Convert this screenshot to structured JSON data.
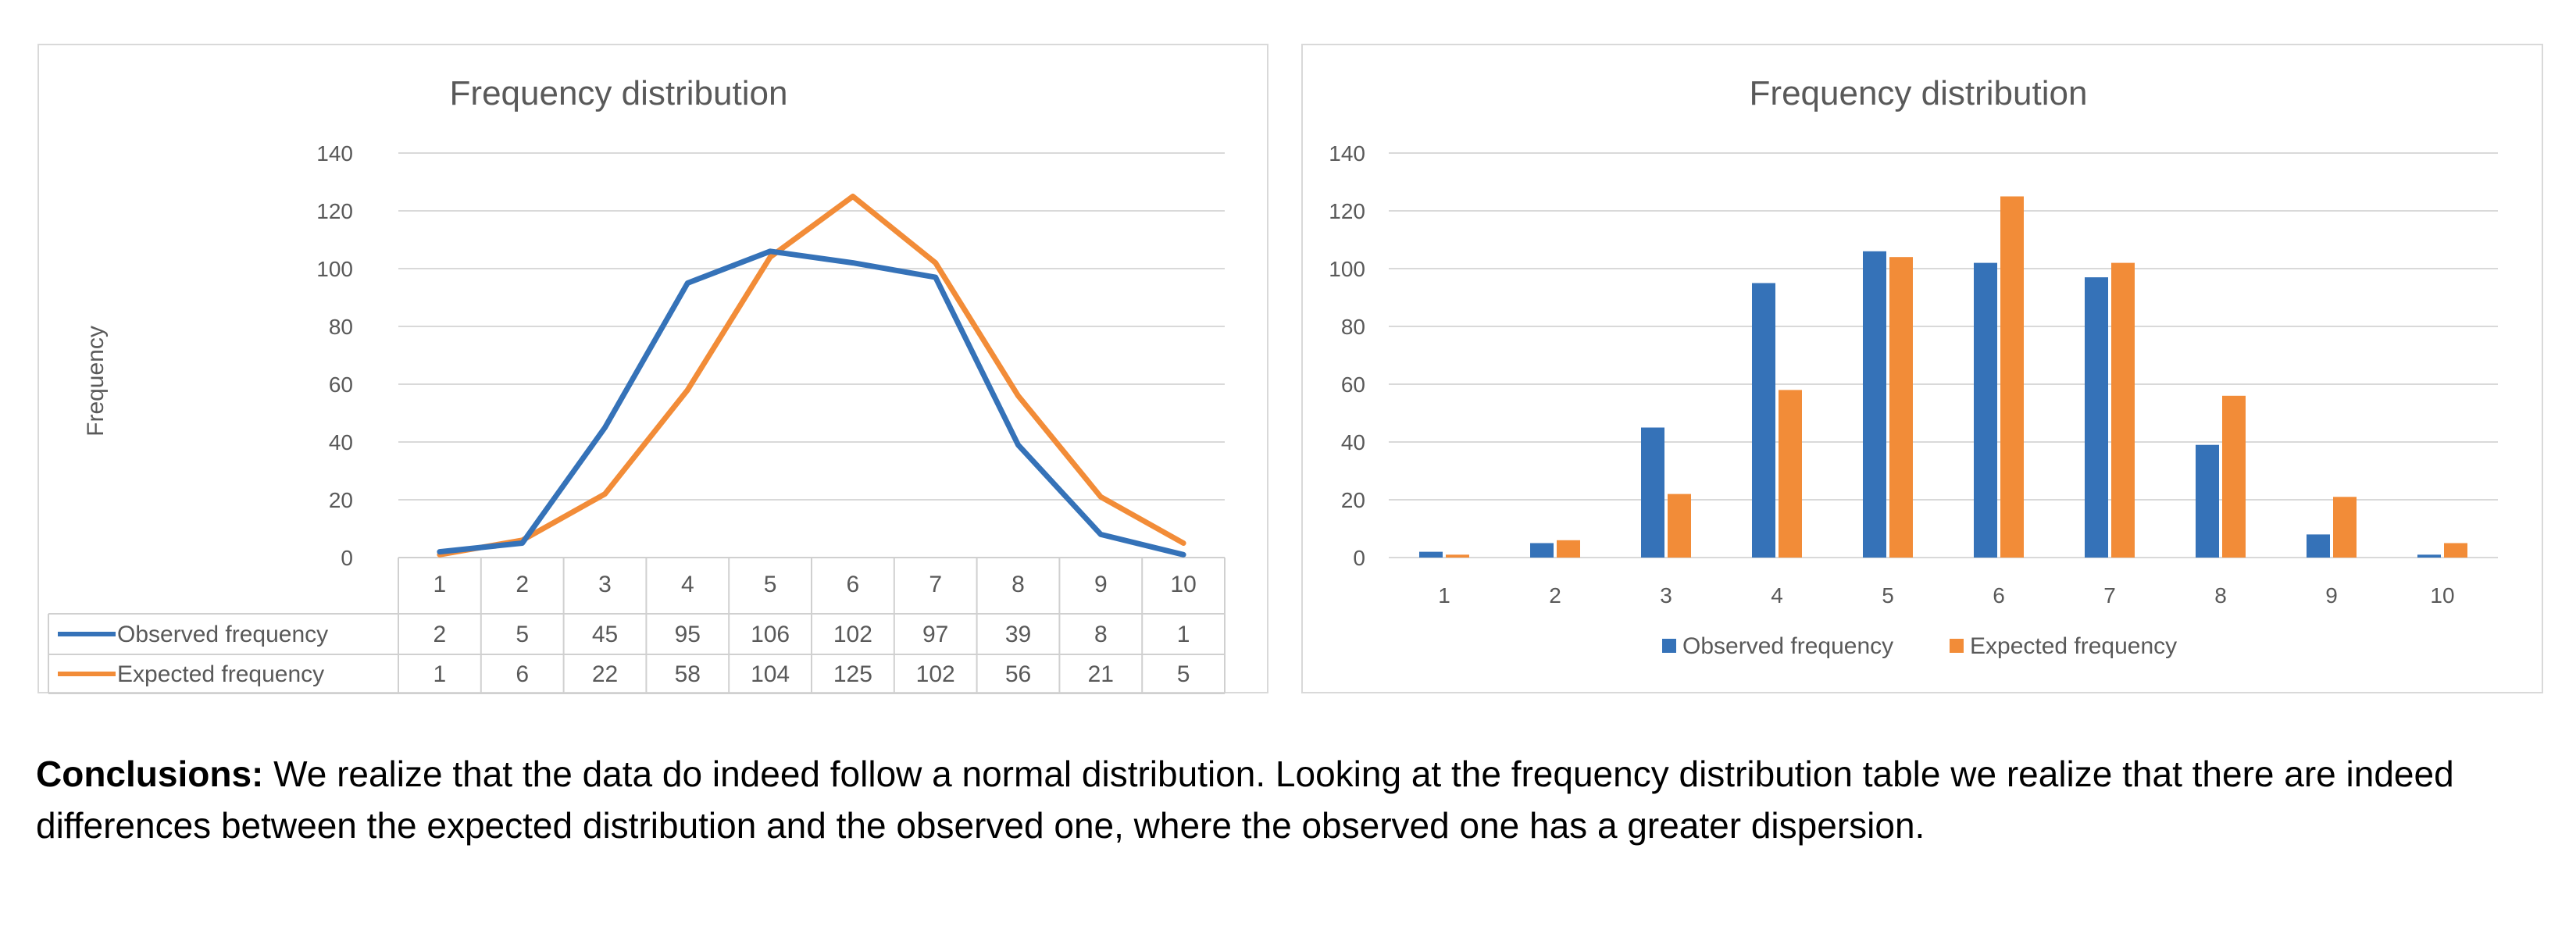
{
  "chart_data": [
    {
      "type": "line",
      "title": "Frequency distribution",
      "ylabel": "Frequency",
      "xlabel": "",
      "ylim": [
        0,
        140
      ],
      "yticks": [
        0,
        20,
        40,
        60,
        80,
        100,
        120,
        140
      ],
      "categories": [
        "1",
        "2",
        "3",
        "4",
        "5",
        "6",
        "7",
        "8",
        "9",
        "10"
      ],
      "series": [
        {
          "name": "Observed frequency",
          "color": "#3572b8",
          "values": [
            2,
            5,
            45,
            95,
            106,
            102,
            97,
            39,
            8,
            1
          ]
        },
        {
          "name": "Expected frequency",
          "color": "#f28c38",
          "values": [
            1,
            6,
            22,
            58,
            104,
            125,
            102,
            56,
            21,
            5
          ]
        }
      ],
      "data_table": true,
      "grid": true
    },
    {
      "type": "bar",
      "title": "Frequency distribution",
      "ylabel": "",
      "xlabel": "",
      "ylim": [
        0,
        140
      ],
      "yticks": [
        0,
        20,
        40,
        60,
        80,
        100,
        120,
        140
      ],
      "categories": [
        "1",
        "2",
        "3",
        "4",
        "5",
        "6",
        "7",
        "8",
        "9",
        "10"
      ],
      "series": [
        {
          "name": "Observed frequency",
          "color": "#3572b8",
          "values": [
            2,
            5,
            45,
            95,
            106,
            102,
            97,
            39,
            8,
            1
          ]
        },
        {
          "name": "Expected frequency",
          "color": "#f28c38",
          "values": [
            1,
            6,
            22,
            58,
            104,
            125,
            102,
            56,
            21,
            5
          ]
        }
      ],
      "legend_position": "bottom",
      "grid": true
    }
  ],
  "conclusion": {
    "label": "Conclusions:",
    "text": " We realize that the data do indeed follow a normal distribution. Looking at the frequency distribution table we realize that there are indeed differences between the expected distribution and the observed one, where the observed one has a greater dispersion."
  }
}
